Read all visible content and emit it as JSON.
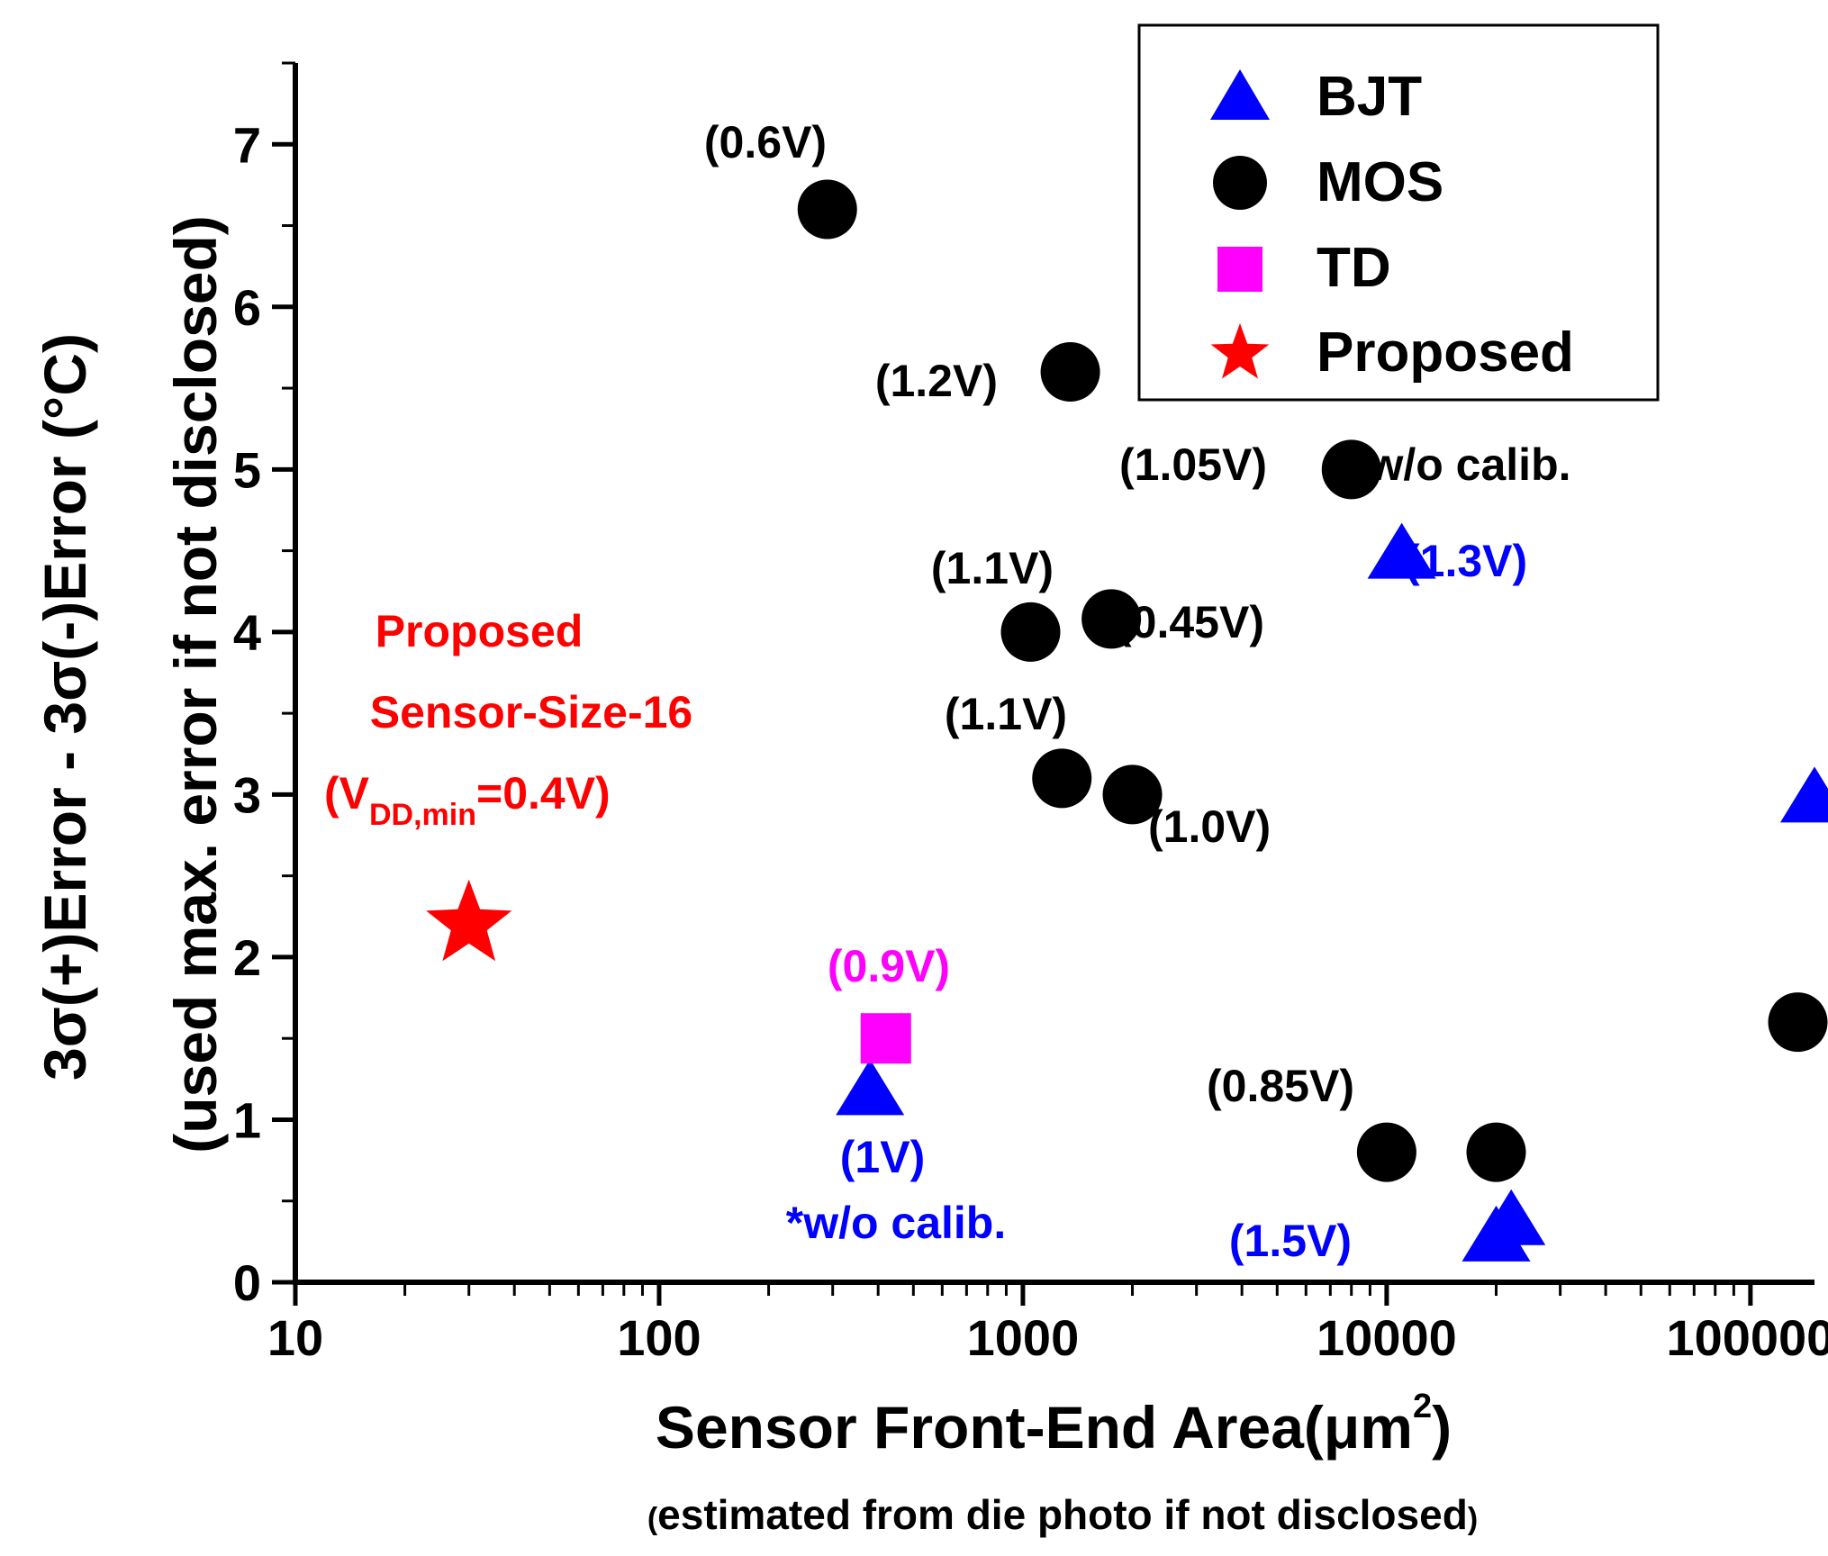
{
  "chart_data": {
    "type": "scatter",
    "x_scale": "log",
    "xlim": [
      10,
      150000
    ],
    "ylim": [
      0,
      7.5
    ],
    "xlabel": "Sensor Front-End Area(μm",
    "xlabel_sup": "2",
    "xlabel_end": ")",
    "xlabel_sub": "estimated from die photo if not disclosed",
    "xlabel_sub_open": "(",
    "xlabel_sub_close": ")",
    "ylabel_line1": "3σ(+)Error - 3σ(-)Error (°C)",
    "ylabel_line2": "(used max. error if not disclosed)",
    "x_ticks": [
      {
        "value": 10,
        "label": "10"
      },
      {
        "value": 100,
        "label": "100"
      },
      {
        "value": 1000,
        "label": "1000"
      },
      {
        "value": 10000,
        "label": "10000"
      },
      {
        "value": 100000,
        "label": "100000"
      }
    ],
    "y_ticks": [
      {
        "value": 0,
        "label": "0"
      },
      {
        "value": 1,
        "label": "1"
      },
      {
        "value": 2,
        "label": "2"
      },
      {
        "value": 3,
        "label": "3"
      },
      {
        "value": 4,
        "label": "4"
      },
      {
        "value": 5,
        "label": "5"
      },
      {
        "value": 6,
        "label": "6"
      },
      {
        "value": 7,
        "label": "7"
      }
    ],
    "series": [
      {
        "name": "BJT",
        "marker": "triangle",
        "color": "#0000ff",
        "points": [
          {
            "x": 380,
            "y": 1.2,
            "label": "(1V)"
          },
          {
            "x": 11000,
            "y": 4.5,
            "label": "(1.3V)"
          },
          {
            "x": 20000,
            "y": 0.3,
            "label": "(1.5V)"
          },
          {
            "x": 22000,
            "y": 0.4,
            "label": ""
          },
          {
            "x": 150000,
            "y": 3.0,
            "label": ""
          }
        ]
      },
      {
        "name": "MOS",
        "marker": "circle",
        "color": "#000000",
        "points": [
          {
            "x": 290,
            "y": 6.6,
            "label": "(0.6V)"
          },
          {
            "x": 1350,
            "y": 5.6,
            "label": "(1.2V)"
          },
          {
            "x": 8000,
            "y": 5.0,
            "label": "(1.05V)"
          },
          {
            "x": 1050,
            "y": 4.0,
            "label": "(1.1V)"
          },
          {
            "x": 1750,
            "y": 4.08,
            "label": "(0.45V)"
          },
          {
            "x": 1280,
            "y": 3.1,
            "label": "(1.1V)"
          },
          {
            "x": 2000,
            "y": 3.0,
            "label": "(1.0V)"
          },
          {
            "x": 10000,
            "y": 0.8,
            "label": "(0.85V)"
          },
          {
            "x": 20000,
            "y": 0.8,
            "label": ""
          },
          {
            "x": 135000,
            "y": 1.6,
            "label": ""
          }
        ]
      },
      {
        "name": "TD",
        "marker": "square",
        "color": "#ff00ff",
        "points": [
          {
            "x": 420,
            "y": 1.5,
            "label": "(0.9V)"
          }
        ]
      },
      {
        "name": "Proposed",
        "marker": "star",
        "color": "#ff0000",
        "points": [
          {
            "x": 30,
            "y": 2.2,
            "label": ""
          }
        ]
      }
    ],
    "annotations": {
      "mos_wo_calib": "*w/o calib.",
      "bjt_wo_calib": "*w/o calib.",
      "proposed_line1": "Proposed",
      "proposed_line2": "Sensor-Size-16",
      "proposed_line3_open": "(V",
      "proposed_line3_sub": "DD,min",
      "proposed_line3_close": "=0.4V)"
    },
    "legend": {
      "placement": "top-right",
      "entries": [
        "BJT",
        "MOS",
        "TD",
        "Proposed"
      ]
    }
  }
}
